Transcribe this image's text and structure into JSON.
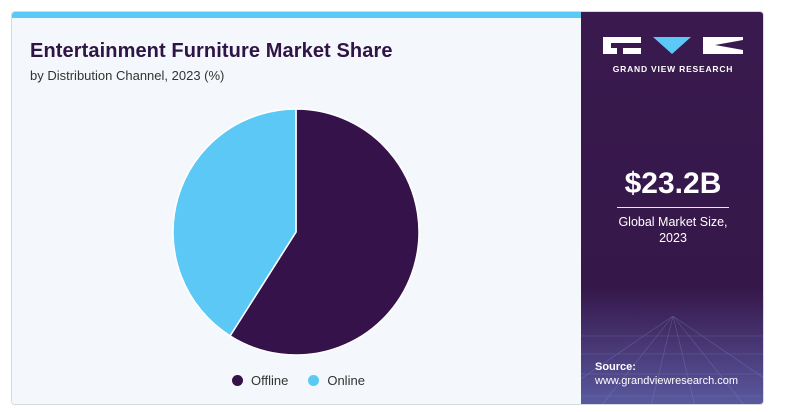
{
  "header": {
    "title": "Entertainment Furniture Market Share",
    "subtitle": "by Distribution Channel, 2023 (%)"
  },
  "chart_data": {
    "type": "pie",
    "title": "Entertainment Furniture Market Share",
    "subtitle": "by Distribution Channel, 2023 (%)",
    "categories": [
      "Offline",
      "Online"
    ],
    "values": [
      59,
      41
    ],
    "colors": [
      "#35124a",
      "#5cc8f5"
    ],
    "start_angle_deg": 0,
    "legend_position": "bottom"
  },
  "legend": [
    {
      "label": "Offline",
      "color": "#35124a"
    },
    {
      "label": "Online",
      "color": "#5cc8f5"
    }
  ],
  "sidebar": {
    "brand": "GRAND VIEW RESEARCH",
    "market_size": "$23.2B",
    "market_size_label_line1": "Global Market Size,",
    "market_size_label_line2": "2023",
    "source_label": "Source:",
    "source_url": "www.grandviewresearch.com"
  },
  "colors": {
    "accent_bar": "#5cc8f5",
    "sidebar_bg": "#3a1a4e",
    "title_color": "#2f1545"
  }
}
